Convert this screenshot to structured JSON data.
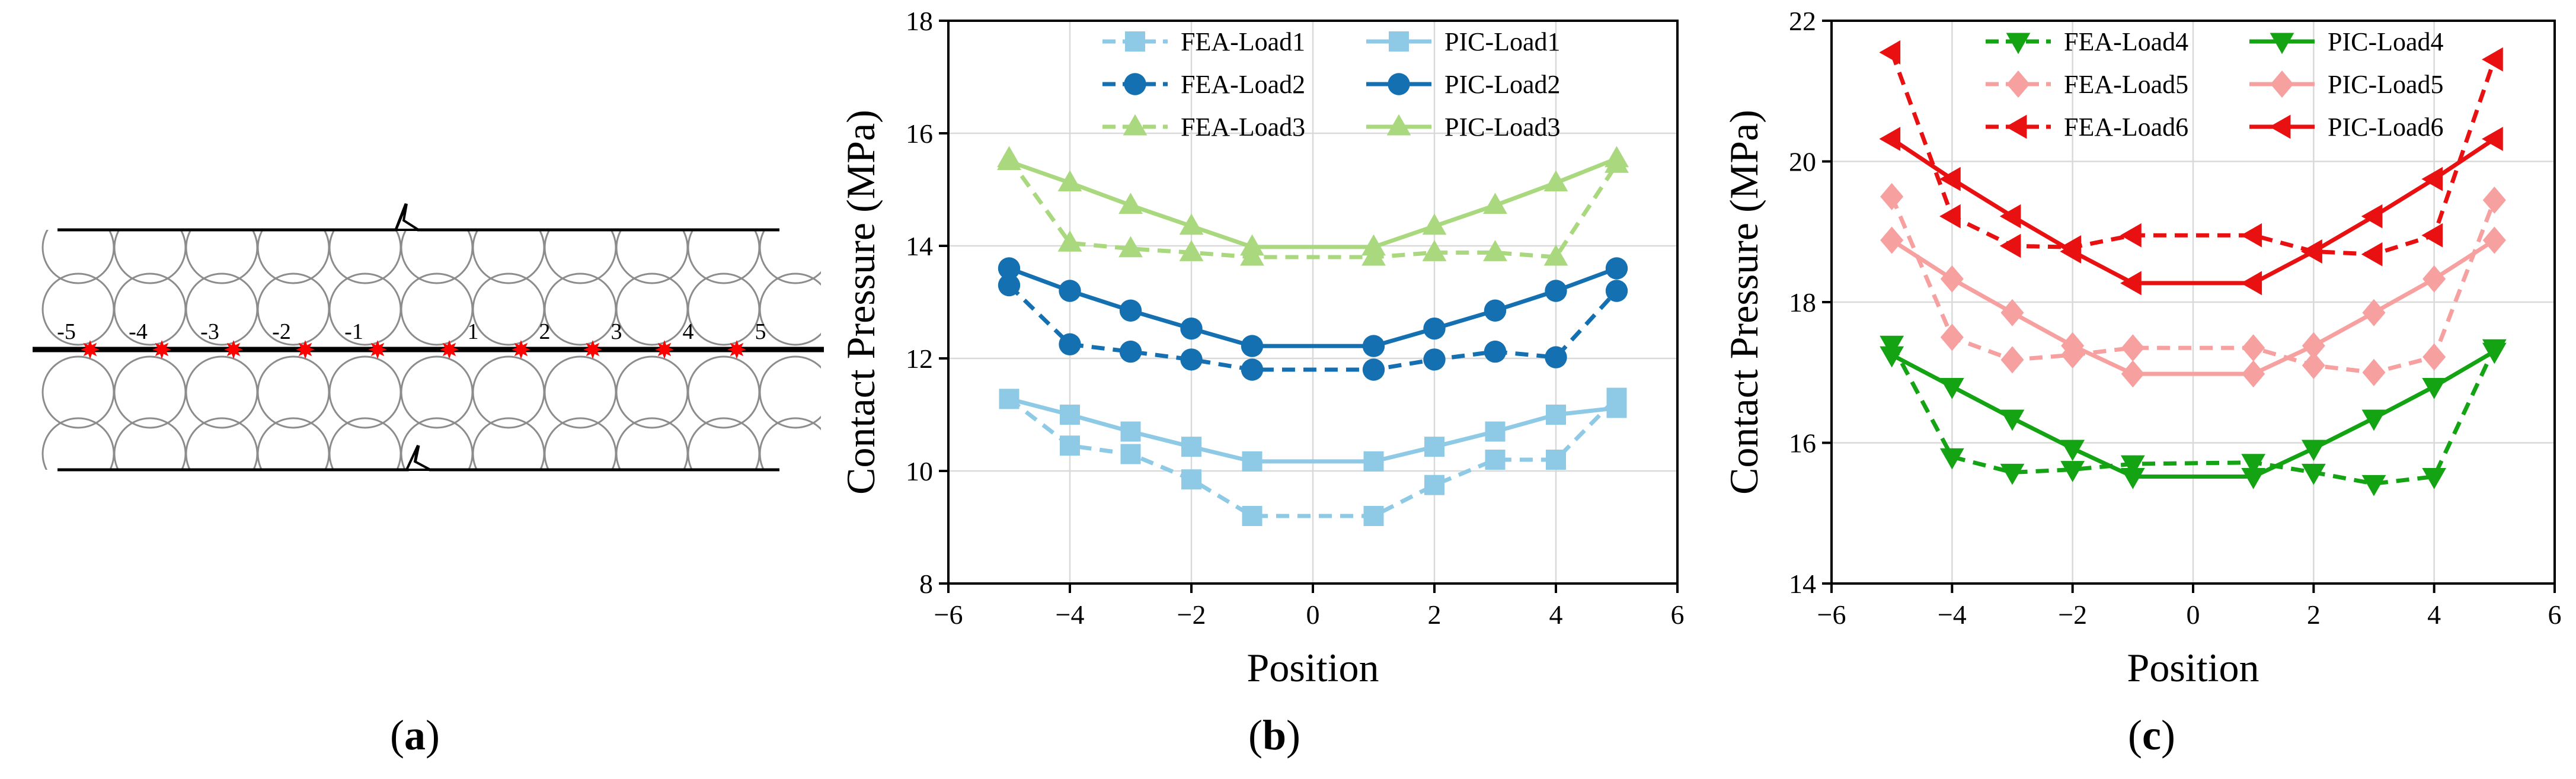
{
  "panel_a": {
    "caption_open": "(",
    "caption_letter": "a",
    "caption_close": ")",
    "position_labels": [
      "-5",
      "-4",
      "-3",
      "-2",
      "-1",
      "1",
      "2",
      "3",
      "4",
      "5"
    ],
    "colors": {
      "contact_point": "#ff0000",
      "wire": "#8c8c8c",
      "line": "#000000"
    }
  },
  "panel_b": {
    "caption_open": "(",
    "caption_letter": "b",
    "caption_close": ")"
  },
  "panel_c": {
    "caption_open": "(",
    "caption_letter": "c",
    "caption_close": ")"
  },
  "chart_data": [
    {
      "id": "b",
      "type": "line",
      "xlabel": "Position",
      "ylabel": "Contact Pressure (MPa)",
      "xlim": [
        -6,
        6
      ],
      "ylim": [
        8,
        18
      ],
      "xticks": [
        -6,
        -4,
        -2,
        0,
        2,
        4,
        6
      ],
      "yticks": [
        8,
        10,
        12,
        14,
        16,
        18
      ],
      "xtick_labels": [
        "−6",
        "−4",
        "−2",
        "0",
        "2",
        "4",
        "6"
      ],
      "ytick_labels": [
        "8",
        "10",
        "12",
        "14",
        "16",
        "18"
      ],
      "grid": true,
      "legend_position": "top-center",
      "x": [
        -5,
        -4,
        -3,
        -2,
        -1,
        1,
        2,
        3,
        4,
        5
      ],
      "series": [
        {
          "name": "FEA-Load1",
          "color": "#8ecae6",
          "dash": "dash",
          "marker": "square",
          "values": [
            11.28,
            10.45,
            10.3,
            9.85,
            9.2,
            9.2,
            9.75,
            10.2,
            10.2,
            11.3
          ]
        },
        {
          "name": "PIC-Load1",
          "color": "#8ecae6",
          "dash": "solid",
          "marker": "square",
          "values": [
            11.28,
            11.0,
            10.7,
            10.43,
            10.17,
            10.17,
            10.43,
            10.7,
            11.0,
            11.12
          ]
        },
        {
          "name": "FEA-Load2",
          "color": "#1470b0",
          "dash": "dash",
          "marker": "circle",
          "values": [
            13.3,
            12.25,
            12.12,
            11.98,
            11.8,
            11.8,
            11.98,
            12.12,
            12.02,
            13.2
          ]
        },
        {
          "name": "PIC-Load2",
          "color": "#1470b0",
          "dash": "solid",
          "marker": "circle",
          "values": [
            13.6,
            13.2,
            12.85,
            12.53,
            12.22,
            12.22,
            12.53,
            12.85,
            13.2,
            13.6
          ]
        },
        {
          "name": "FEA-Load3",
          "color": "#a9d87e",
          "dash": "dash",
          "marker": "triangle",
          "values": [
            15.55,
            14.05,
            13.95,
            13.88,
            13.8,
            13.8,
            13.88,
            13.88,
            13.8,
            15.45
          ]
        },
        {
          "name": "PIC-Load3",
          "color": "#a9d87e",
          "dash": "solid",
          "marker": "triangle",
          "values": [
            15.5,
            15.12,
            14.72,
            14.35,
            13.98,
            13.98,
            14.35,
            14.72,
            15.12,
            15.55
          ]
        }
      ],
      "legend_order": [
        "FEA-Load1",
        "PIC-Load1",
        "FEA-Load2",
        "PIC-Load2",
        "FEA-Load3",
        "PIC-Load3"
      ]
    },
    {
      "id": "c",
      "type": "line",
      "xlabel": "Position",
      "ylabel": "Contact Pressure (MPa)",
      "xlim": [
        -6,
        6
      ],
      "ylim": [
        14,
        22
      ],
      "xticks": [
        -6,
        -4,
        -2,
        0,
        2,
        4,
        6
      ],
      "yticks": [
        14,
        16,
        18,
        20,
        22
      ],
      "xtick_labels": [
        "−6",
        "−4",
        "−2",
        "0",
        "2",
        "4",
        "6"
      ],
      "ytick_labels": [
        "14",
        "16",
        "18",
        "20",
        "22"
      ],
      "grid": true,
      "legend_position": "top-center",
      "x": [
        -5,
        -4,
        -3,
        -2,
        -1,
        1,
        2,
        3,
        4,
        5
      ],
      "series": [
        {
          "name": "FEA-Load4",
          "color": "#13a313",
          "dash": "dash",
          "marker": "triangle-down",
          "values": [
            17.4,
            15.8,
            15.58,
            15.62,
            15.7,
            15.72,
            15.58,
            15.42,
            15.52,
            17.35
          ]
        },
        {
          "name": "PIC-Load4",
          "color": "#13a313",
          "dash": "solid",
          "marker": "triangle-down",
          "values": [
            17.25,
            16.8,
            16.35,
            15.92,
            15.52,
            15.52,
            15.92,
            16.35,
            16.8,
            17.3
          ]
        },
        {
          "name": "FEA-Load5",
          "color": "#f6a0a0",
          "dash": "dash",
          "marker": "diamond",
          "values": [
            19.5,
            17.5,
            17.18,
            17.25,
            17.35,
            17.35,
            17.1,
            17.0,
            17.22,
            19.45
          ]
        },
        {
          "name": "PIC-Load5",
          "color": "#f6a0a0",
          "dash": "solid",
          "marker": "diamond",
          "values": [
            18.88,
            18.33,
            17.85,
            17.38,
            16.98,
            16.98,
            17.38,
            17.85,
            18.33,
            18.88
          ]
        },
        {
          "name": "FEA-Load6",
          "color": "#e81010",
          "dash": "dash",
          "marker": "triangle-left",
          "values": [
            21.55,
            19.22,
            18.8,
            18.78,
            18.95,
            18.95,
            18.72,
            18.68,
            18.95,
            21.45
          ]
        },
        {
          "name": "PIC-Load6",
          "color": "#e81010",
          "dash": "solid",
          "marker": "triangle-left",
          "values": [
            20.32,
            19.75,
            19.22,
            18.72,
            18.27,
            18.27,
            18.72,
            19.22,
            19.75,
            20.32
          ]
        }
      ],
      "legend_order": [
        "FEA-Load4",
        "PIC-Load4",
        "FEA-Load5",
        "PIC-Load5",
        "FEA-Load6",
        "PIC-Load6"
      ]
    }
  ]
}
